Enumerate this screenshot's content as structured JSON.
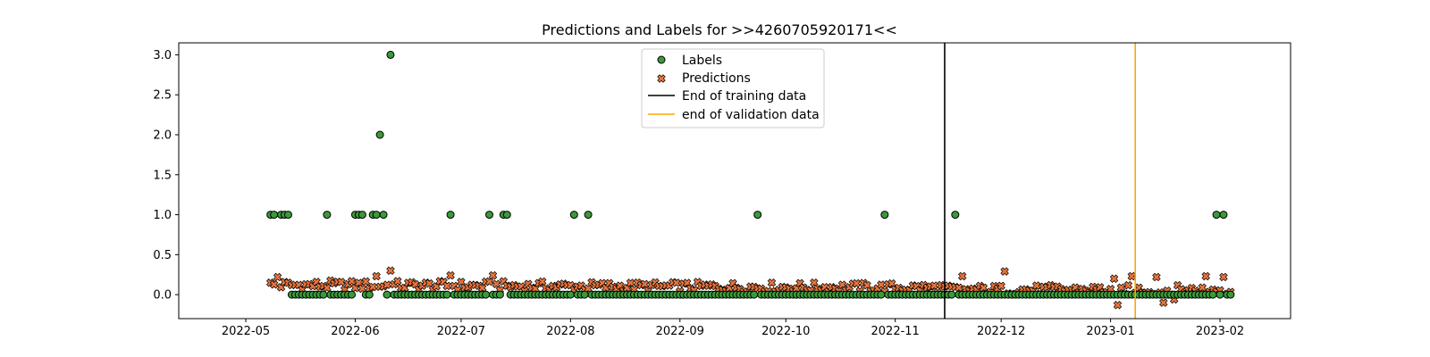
{
  "chart_data": {
    "type": "scatter",
    "title": "Predictions and Labels for >>4260705920171<<",
    "xlabel": "",
    "ylabel": "",
    "xlim": [
      "2022-04-12",
      "2023-02-21"
    ],
    "ylim": [
      -0.3,
      3.15
    ],
    "x_ticks": [
      "2022-05",
      "2022-06",
      "2022-07",
      "2022-08",
      "2022-09",
      "2022-10",
      "2022-11",
      "2022-12",
      "2023-01",
      "2023-02"
    ],
    "x_tick_dates": [
      "2022-05-01",
      "2022-06-01",
      "2022-07-01",
      "2022-08-01",
      "2022-09-01",
      "2022-10-01",
      "2022-11-01",
      "2022-12-01",
      "2023-01-01",
      "2023-02-01"
    ],
    "y_ticks": [
      "0.0",
      "0.5",
      "1.0",
      "1.5",
      "2.0",
      "2.5",
      "3.0"
    ],
    "grid": false,
    "legend_position": "top-center",
    "date_range": {
      "start": "2022-05-08",
      "end": "2023-02-04"
    },
    "series": [
      {
        "name": "Labels",
        "marker": "circle",
        "color": "#3a9a3a",
        "edge_color": "#000000",
        "default_value": 0.0,
        "nonzero_points": [
          {
            "x": "2022-05-08",
            "y": 1.0
          },
          {
            "x": "2022-05-09",
            "y": 1.0
          },
          {
            "x": "2022-05-11",
            "y": 1.0
          },
          {
            "x": "2022-05-12",
            "y": 1.0
          },
          {
            "x": "2022-05-13",
            "y": 1.0
          },
          {
            "x": "2022-05-24",
            "y": 1.0
          },
          {
            "x": "2022-06-01",
            "y": 1.0
          },
          {
            "x": "2022-06-02",
            "y": 1.0
          },
          {
            "x": "2022-06-03",
            "y": 1.0
          },
          {
            "x": "2022-06-06",
            "y": 1.0
          },
          {
            "x": "2022-06-07",
            "y": 1.0
          },
          {
            "x": "2022-06-08",
            "y": 2.0
          },
          {
            "x": "2022-06-09",
            "y": 1.0
          },
          {
            "x": "2022-06-11",
            "y": 3.0
          },
          {
            "x": "2022-06-28",
            "y": 1.0
          },
          {
            "x": "2022-07-09",
            "y": 1.0
          },
          {
            "x": "2022-07-13",
            "y": 1.0
          },
          {
            "x": "2022-07-14",
            "y": 1.0
          },
          {
            "x": "2022-08-02",
            "y": 1.0
          },
          {
            "x": "2022-08-06",
            "y": 1.0
          },
          {
            "x": "2022-09-23",
            "y": 1.0
          },
          {
            "x": "2022-10-29",
            "y": 1.0
          },
          {
            "x": "2022-11-18",
            "y": 1.0
          },
          {
            "x": "2023-01-31",
            "y": 1.0
          },
          {
            "x": "2023-02-02",
            "y": 1.0
          }
        ],
        "gaps": [
          "2022-05-10"
        ]
      },
      {
        "name": "Predictions",
        "marker": "x",
        "color": "#e8743b",
        "edge_color": "#000000",
        "typical_range": [
          0.02,
          0.22
        ],
        "notable_points": [
          {
            "x": "2022-05-10",
            "y": 0.22
          },
          {
            "x": "2022-06-07",
            "y": 0.23
          },
          {
            "x": "2022-06-11",
            "y": 0.3
          },
          {
            "x": "2022-06-28",
            "y": 0.24
          },
          {
            "x": "2022-07-10",
            "y": 0.24
          },
          {
            "x": "2022-11-20",
            "y": 0.23
          },
          {
            "x": "2022-12-02",
            "y": 0.29
          },
          {
            "x": "2023-01-02",
            "y": 0.2
          },
          {
            "x": "2023-01-03",
            "y": -0.13
          },
          {
            "x": "2023-01-07",
            "y": 0.23
          },
          {
            "x": "2023-01-14",
            "y": 0.22
          },
          {
            "x": "2023-01-16",
            "y": -0.1
          },
          {
            "x": "2023-01-19",
            "y": -0.06
          },
          {
            "x": "2023-01-28",
            "y": 0.23
          },
          {
            "x": "2023-02-02",
            "y": 0.22
          }
        ]
      }
    ],
    "vertical_lines": [
      {
        "name": "End of training data",
        "x": "2022-11-15",
        "color": "#000000"
      },
      {
        "name": "end of validation data",
        "x": "2023-01-08",
        "color": "#ffa500"
      }
    ]
  }
}
